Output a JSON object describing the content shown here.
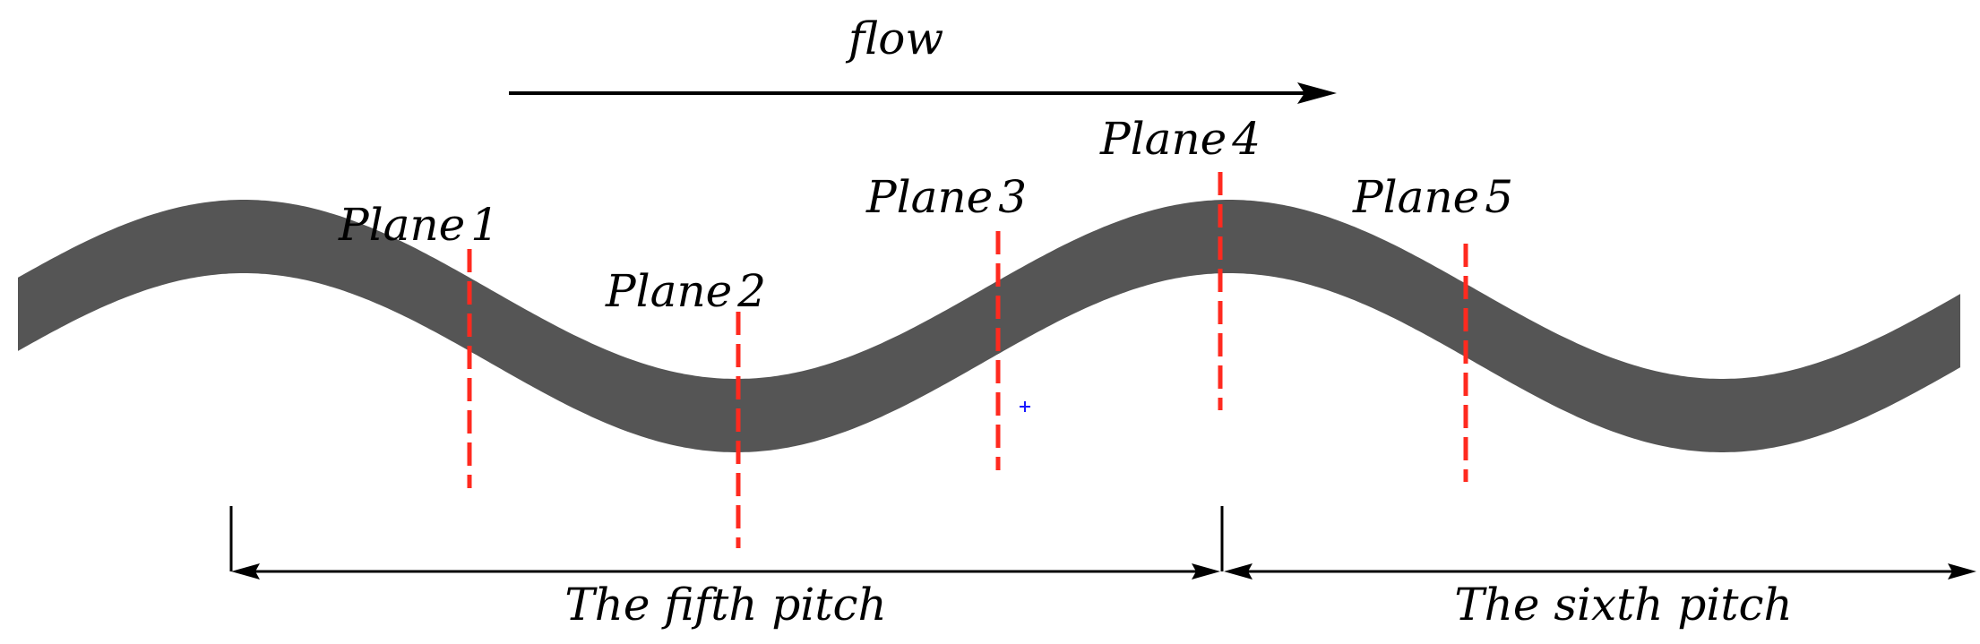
{
  "flow": {
    "label": "flow"
  },
  "planes": [
    {
      "name": "Plane",
      "index": "1"
    },
    {
      "name": "Plane",
      "index": "2"
    },
    {
      "name": "Plane",
      "index": "3"
    },
    {
      "name": "Plane",
      "index": "4"
    },
    {
      "name": "Plane",
      "index": "5"
    }
  ],
  "pitches": [
    {
      "label": "The fifth pitch"
    },
    {
      "label": "The sixth pitch"
    }
  ],
  "colors": {
    "channel": "#555555",
    "plane_line": "#ff2a1f",
    "arrow": "#000000",
    "marker": "#1a1aff"
  }
}
